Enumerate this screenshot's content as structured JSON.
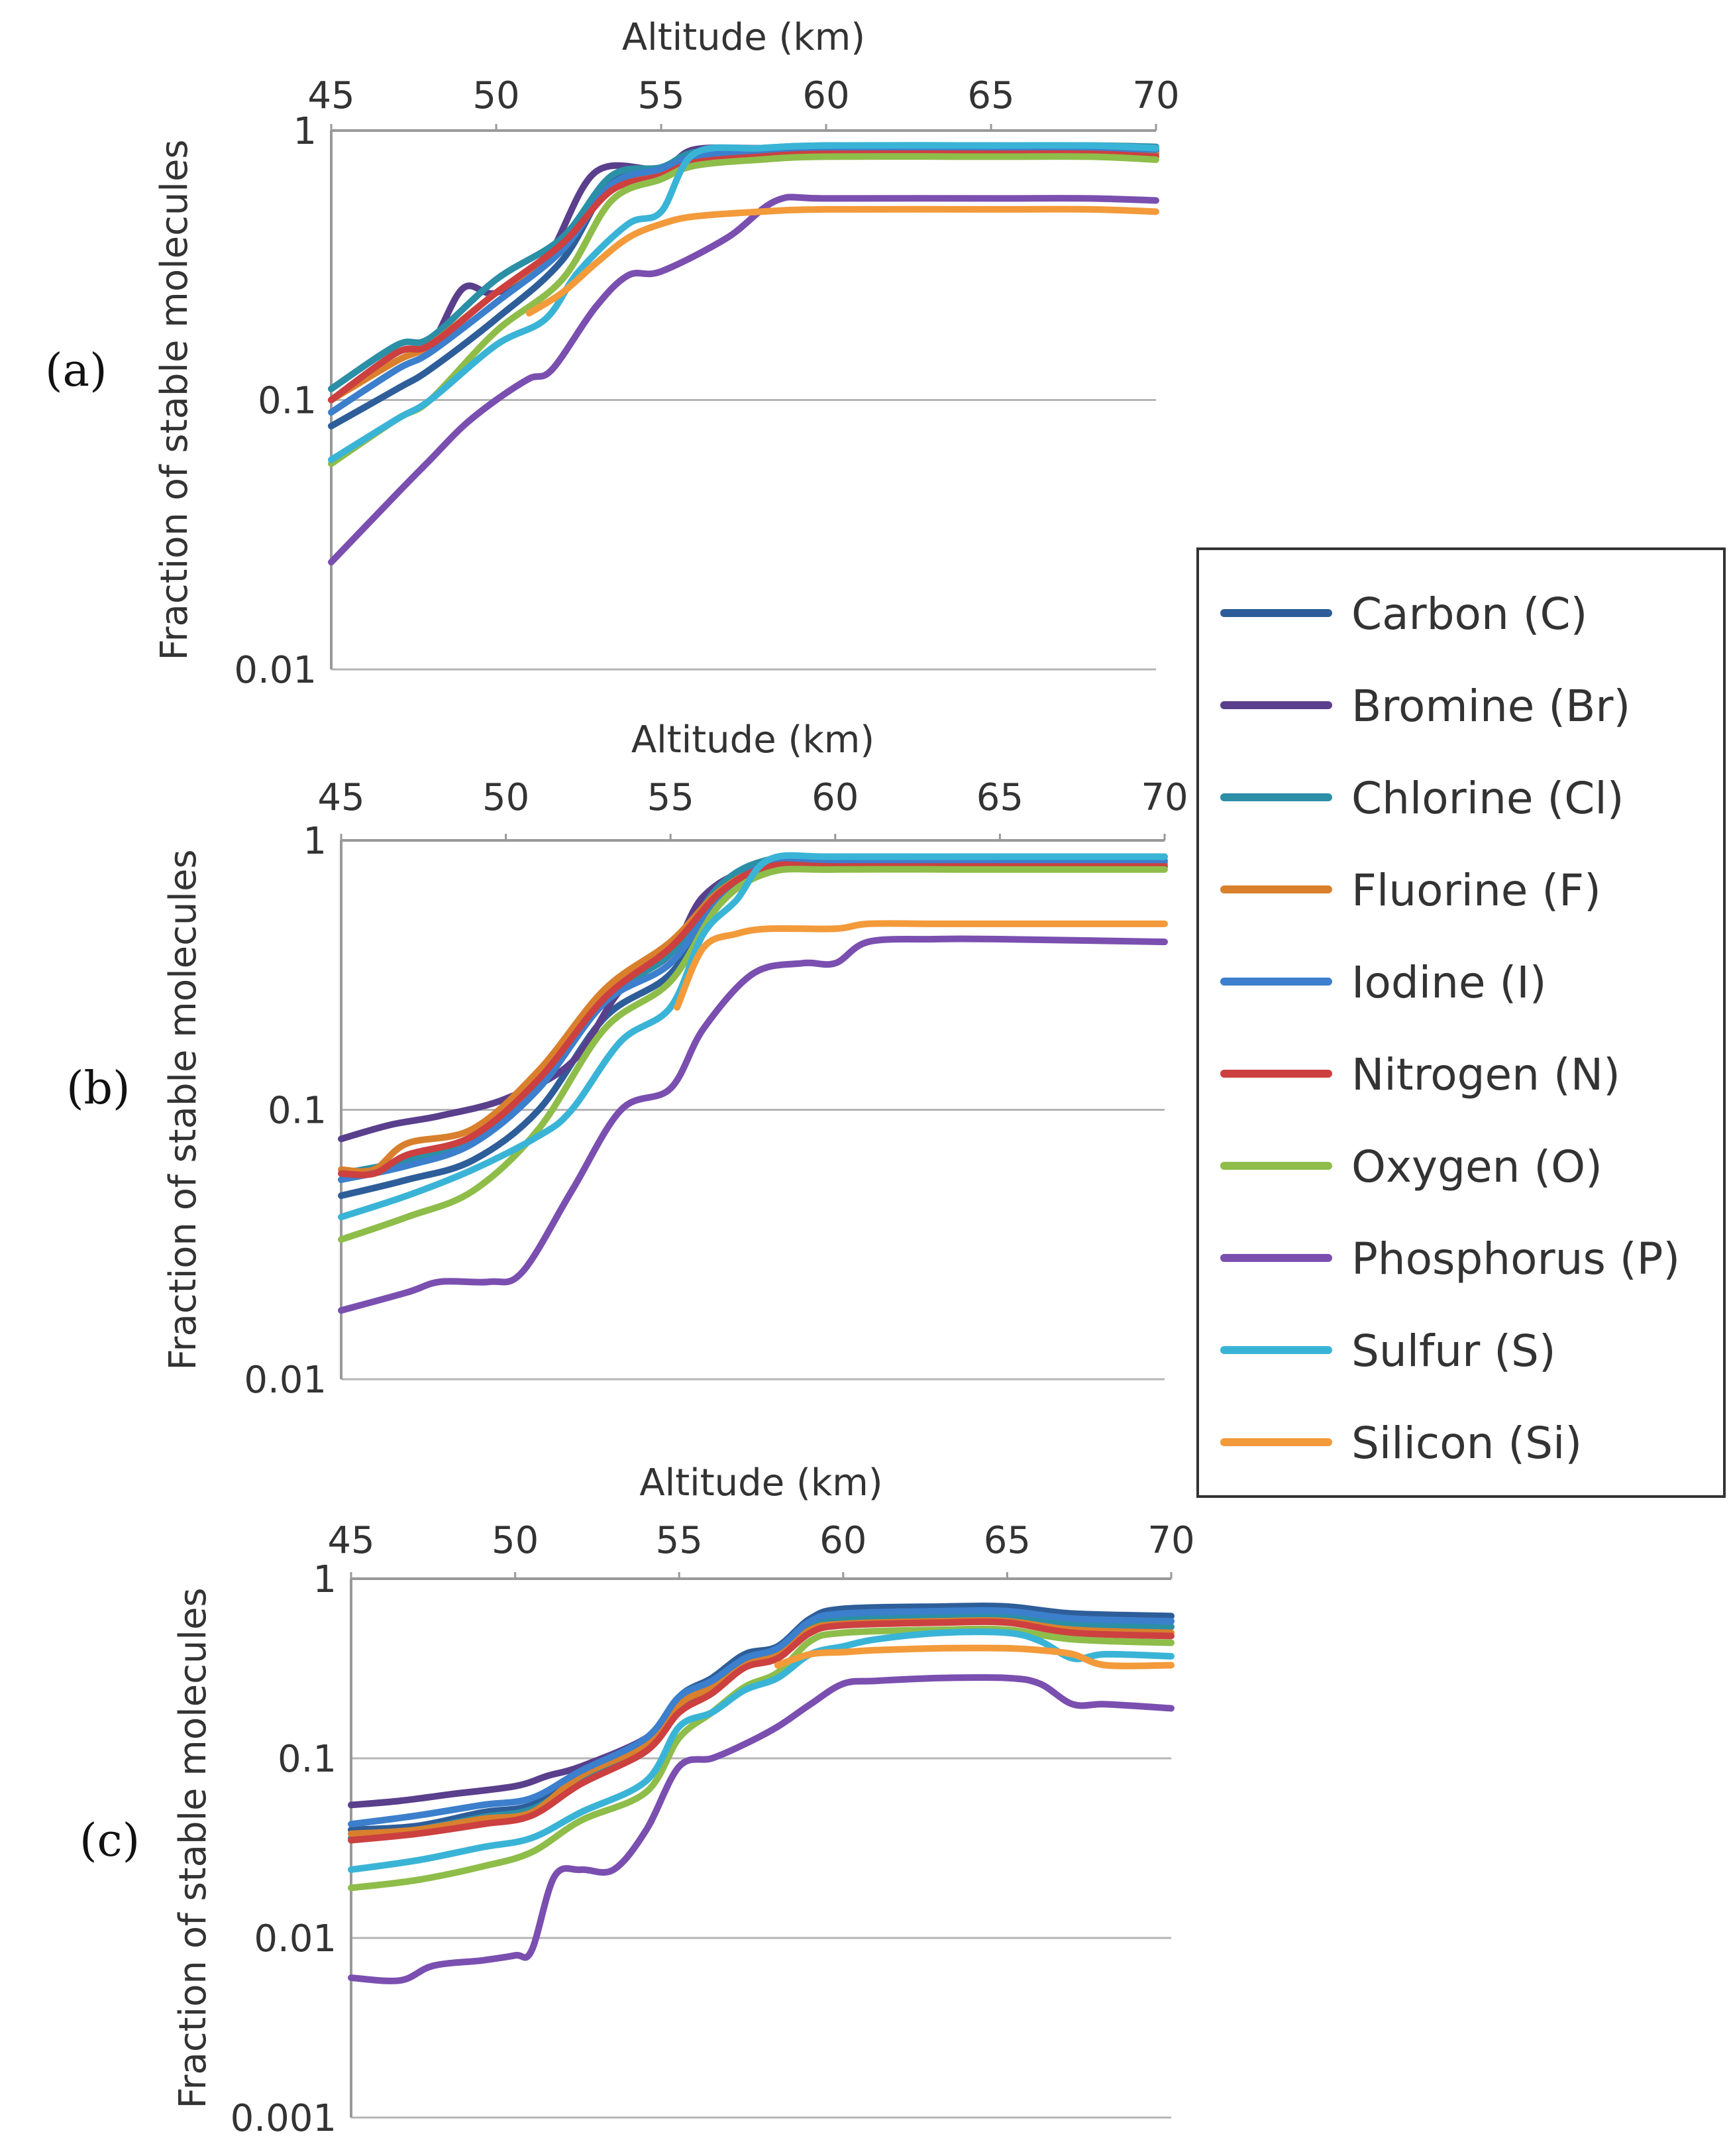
{
  "legend": {
    "items": [
      {
        "label": "Carbon (C)",
        "color": "#2e5e99"
      },
      {
        "label": "Bromine (Br)",
        "color": "#5a3f8c"
      },
      {
        "label": "Chlorine (Cl)",
        "color": "#2b8fa6"
      },
      {
        "label": "Fluorine (F)",
        "color": "#d9802d"
      },
      {
        "label": "Iodine (I)",
        "color": "#3c7fcc"
      },
      {
        "label": "Nitrogen (N)",
        "color": "#cc4040"
      },
      {
        "label": "Oxygen (O)",
        "color": "#8ebd4a"
      },
      {
        "label": "Phosphorus (P)",
        "color": "#7a4fb0"
      },
      {
        "label": "Sulfur (S)",
        "color": "#3ab4d6"
      },
      {
        "label": "Silicon (Si)",
        "color": "#f39a3a"
      }
    ]
  },
  "chart_data": [
    {
      "type": "line",
      "panel": "(a)",
      "xlabel": "Altitude (km)",
      "ylabel": "Fraction of stable molecules",
      "xlim": [
        45,
        70
      ],
      "ylim": [
        0.01,
        1
      ],
      "yscale": "log",
      "x_ticks": [
        "45",
        "50",
        "55",
        "60",
        "65",
        "70"
      ],
      "y_ticks": [
        "1",
        "0.1",
        "0.01"
      ],
      "series": [
        {
          "name": "Carbon (C)",
          "x": [
            45,
            47,
            48,
            50,
            52,
            53.5,
            55,
            56,
            58,
            60,
            65,
            68,
            70
          ],
          "values": [
            0.08,
            0.11,
            0.13,
            0.2,
            0.33,
            0.65,
            0.72,
            0.8,
            0.82,
            0.84,
            0.84,
            0.84,
            0.82
          ]
        },
        {
          "name": "Bromine (Br)",
          "x": [
            45,
            47,
            48,
            49,
            50,
            51.5,
            53,
            55,
            56,
            58,
            60,
            65,
            68,
            70
          ],
          "values": [
            0.1,
            0.15,
            0.16,
            0.26,
            0.25,
            0.33,
            0.7,
            0.72,
            0.85,
            0.86,
            0.86,
            0.86,
            0.86,
            0.84
          ]
        },
        {
          "name": "Chlorine (Cl)",
          "x": [
            45,
            47,
            48,
            50,
            52,
            53.5,
            55,
            56,
            58,
            60,
            65,
            68,
            70
          ],
          "values": [
            0.11,
            0.16,
            0.17,
            0.28,
            0.4,
            0.68,
            0.73,
            0.83,
            0.86,
            0.88,
            0.88,
            0.88,
            0.87
          ]
        },
        {
          "name": "Fluorine (F)",
          "x": [
            45,
            47,
            48,
            50,
            52,
            53.5,
            55,
            56,
            58,
            60,
            65,
            68,
            70
          ],
          "values": [
            0.1,
            0.14,
            0.16,
            0.25,
            0.37,
            0.62,
            0.7,
            0.78,
            0.82,
            0.84,
            0.84,
            0.84,
            0.83
          ]
        },
        {
          "name": "Iodine (I)",
          "x": [
            45,
            47,
            48,
            50,
            52,
            53.5,
            55,
            56,
            58,
            60,
            65,
            68,
            70
          ],
          "values": [
            0.09,
            0.13,
            0.15,
            0.23,
            0.36,
            0.63,
            0.72,
            0.8,
            0.84,
            0.86,
            0.86,
            0.86,
            0.85
          ]
        },
        {
          "name": "Nitrogen (N)",
          "x": [
            45,
            47,
            48,
            50,
            52,
            53.5,
            55,
            56,
            58,
            60,
            65,
            68,
            70
          ],
          "values": [
            0.1,
            0.15,
            0.16,
            0.25,
            0.38,
            0.6,
            0.68,
            0.76,
            0.8,
            0.82,
            0.82,
            0.82,
            0.8
          ]
        },
        {
          "name": "Oxygen (O)",
          "x": [
            45,
            47,
            48,
            50,
            52,
            53.5,
            55,
            56,
            58,
            60,
            65,
            68,
            70
          ],
          "values": [
            0.058,
            0.085,
            0.1,
            0.18,
            0.28,
            0.55,
            0.66,
            0.74,
            0.78,
            0.8,
            0.8,
            0.8,
            0.78
          ]
        },
        {
          "name": "Phosphorus (P)",
          "x": [
            45,
            47,
            48,
            49,
            50,
            51,
            51.7,
            53,
            54,
            55,
            57,
            58.5,
            60,
            65,
            68,
            70
          ],
          "values": [
            0.025,
            0.045,
            0.06,
            0.08,
            0.1,
            0.12,
            0.13,
            0.22,
            0.29,
            0.3,
            0.4,
            0.55,
            0.56,
            0.56,
            0.56,
            0.55
          ]
        },
        {
          "name": "Sulfur (S)",
          "x": [
            45,
            47,
            48,
            50,
            51.5,
            52.5,
            54,
            55,
            56,
            58,
            60,
            65,
            68,
            70
          ],
          "values": [
            0.06,
            0.085,
            0.1,
            0.16,
            0.2,
            0.3,
            0.45,
            0.5,
            0.82,
            0.86,
            0.88,
            0.88,
            0.88,
            0.86
          ]
        },
        {
          "name": "Silicon (Si)",
          "x": [
            51,
            52,
            53,
            54,
            55,
            56,
            58,
            60,
            65,
            68,
            70
          ],
          "values": [
            0.21,
            0.25,
            0.32,
            0.4,
            0.45,
            0.48,
            0.5,
            0.51,
            0.51,
            0.51,
            0.5
          ]
        }
      ]
    },
    {
      "type": "line",
      "panel": "(b)",
      "xlabel": "Altitude (km)",
      "ylabel": "Fraction of stable molecules",
      "xlim": [
        45,
        70
      ],
      "ylim": [
        0.01,
        1
      ],
      "yscale": "log",
      "x_ticks": [
        "45",
        "50",
        "55",
        "60",
        "65",
        "70"
      ],
      "y_ticks": [
        "1",
        "0.1",
        "0.01"
      ],
      "series": [
        {
          "name": "Carbon (C)",
          "x": [
            45,
            47,
            49,
            51,
            53,
            55,
            56.5,
            58,
            60,
            65,
            70
          ],
          "values": [
            0.048,
            0.055,
            0.065,
            0.1,
            0.22,
            0.32,
            0.6,
            0.8,
            0.82,
            0.82,
            0.82
          ]
        },
        {
          "name": "Bromine (Br)",
          "x": [
            45,
            46.5,
            48,
            50,
            52,
            53.5,
            55,
            56,
            57.5,
            60,
            65,
            70
          ],
          "values": [
            0.078,
            0.088,
            0.095,
            0.11,
            0.15,
            0.28,
            0.38,
            0.62,
            0.78,
            0.82,
            0.82,
            0.82
          ]
        },
        {
          "name": "Chlorine (Cl)",
          "x": [
            45,
            47,
            49,
            51,
            53,
            55,
            56.5,
            58,
            60,
            65,
            70
          ],
          "values": [
            0.058,
            0.065,
            0.08,
            0.13,
            0.26,
            0.38,
            0.68,
            0.85,
            0.87,
            0.87,
            0.87
          ]
        },
        {
          "name": "Fluorine (F)",
          "x": [
            45,
            46,
            47,
            49,
            51,
            53,
            55,
            56.5,
            58,
            60,
            65,
            70
          ],
          "values": [
            0.06,
            0.06,
            0.075,
            0.085,
            0.14,
            0.28,
            0.42,
            0.65,
            0.8,
            0.82,
            0.82,
            0.82
          ]
        },
        {
          "name": "Iodine (I)",
          "x": [
            45,
            47,
            49,
            51,
            53,
            55,
            56.5,
            58,
            60,
            65,
            70
          ],
          "values": [
            0.055,
            0.062,
            0.075,
            0.12,
            0.25,
            0.35,
            0.62,
            0.82,
            0.84,
            0.84,
            0.84
          ]
        },
        {
          "name": "Nitrogen (N)",
          "x": [
            45,
            46,
            47,
            49,
            51,
            53,
            55,
            56.5,
            58,
            60,
            65,
            70
          ],
          "values": [
            0.058,
            0.058,
            0.068,
            0.08,
            0.13,
            0.26,
            0.4,
            0.64,
            0.8,
            0.8,
            0.8,
            0.8
          ]
        },
        {
          "name": "Oxygen (O)",
          "x": [
            45,
            47,
            49,
            51,
            53,
            55,
            56.5,
            58,
            60,
            65,
            70
          ],
          "values": [
            0.033,
            0.04,
            0.05,
            0.085,
            0.2,
            0.3,
            0.58,
            0.76,
            0.78,
            0.78,
            0.78
          ]
        },
        {
          "name": "Phosphorus (P)",
          "x": [
            45,
            47,
            48,
            49.5,
            50.5,
            52,
            53.5,
            55,
            56,
            57.5,
            59,
            60,
            61,
            63,
            65,
            70
          ],
          "values": [
            0.018,
            0.021,
            0.023,
            0.023,
            0.025,
            0.05,
            0.1,
            0.12,
            0.2,
            0.32,
            0.35,
            0.35,
            0.42,
            0.43,
            0.43,
            0.42
          ]
        },
        {
          "name": "Sulfur (S)",
          "x": [
            45,
            47,
            49,
            51,
            52,
            53.5,
            55,
            56,
            57,
            58,
            60,
            65,
            70
          ],
          "values": [
            0.04,
            0.048,
            0.06,
            0.08,
            0.1,
            0.18,
            0.24,
            0.45,
            0.6,
            0.85,
            0.87,
            0.87,
            0.87
          ]
        },
        {
          "name": "Silicon (Si)",
          "x": [
            55.2,
            56,
            57,
            58,
            60,
            61,
            63,
            65,
            70
          ],
          "values": [
            0.24,
            0.4,
            0.45,
            0.47,
            0.47,
            0.49,
            0.49,
            0.49,
            0.49
          ]
        }
      ]
    },
    {
      "type": "line",
      "panel": "(c)",
      "xlabel": "Altitude (km)",
      "ylabel": "Fraction of stable molecules",
      "xlim": [
        45,
        70
      ],
      "ylim": [
        0.001,
        1
      ],
      "yscale": "log",
      "x_ticks": [
        "45",
        "50",
        "55",
        "60",
        "65",
        "70"
      ],
      "y_ticks": [
        "1",
        "0.1",
        "0.01",
        "0.001"
      ],
      "series": [
        {
          "name": "Carbon (C)",
          "x": [
            45,
            47,
            49,
            50.5,
            52,
            54,
            55,
            56,
            57,
            58,
            59,
            60,
            63,
            65,
            67,
            70
          ],
          "values": [
            0.04,
            0.042,
            0.05,
            0.055,
            0.08,
            0.12,
            0.22,
            0.28,
            0.38,
            0.42,
            0.6,
            0.68,
            0.7,
            0.7,
            0.64,
            0.62
          ]
        },
        {
          "name": "Bromine (Br)",
          "x": [
            45,
            46.5,
            48,
            50,
            51,
            52,
            54,
            55,
            56,
            57,
            58,
            59,
            60,
            63,
            65,
            67,
            70
          ],
          "values": [
            0.055,
            0.058,
            0.063,
            0.07,
            0.08,
            0.09,
            0.13,
            0.2,
            0.25,
            0.35,
            0.4,
            0.55,
            0.62,
            0.65,
            0.65,
            0.6,
            0.58
          ]
        },
        {
          "name": "Chlorine (Cl)",
          "x": [
            45,
            47,
            49,
            50.5,
            52,
            54,
            55,
            56,
            57,
            58,
            59,
            60,
            63,
            65,
            67,
            70
          ],
          "values": [
            0.036,
            0.04,
            0.047,
            0.052,
            0.075,
            0.11,
            0.2,
            0.26,
            0.35,
            0.4,
            0.55,
            0.6,
            0.62,
            0.62,
            0.56,
            0.54
          ]
        },
        {
          "name": "Fluorine (F)",
          "x": [
            45,
            47,
            49,
            50.5,
            52,
            54,
            55,
            56,
            57,
            58,
            59,
            60,
            63,
            65,
            67,
            70
          ],
          "values": [
            0.038,
            0.04,
            0.046,
            0.05,
            0.08,
            0.12,
            0.2,
            0.25,
            0.34,
            0.38,
            0.52,
            0.56,
            0.58,
            0.58,
            0.52,
            0.5
          ]
        },
        {
          "name": "Iodine (I)",
          "x": [
            45,
            47,
            49,
            50.5,
            52,
            54,
            55,
            56,
            57,
            58,
            59,
            60,
            63,
            65,
            67,
            70
          ],
          "values": [
            0.043,
            0.048,
            0.055,
            0.06,
            0.085,
            0.13,
            0.22,
            0.27,
            0.36,
            0.41,
            0.58,
            0.64,
            0.66,
            0.66,
            0.6,
            0.58
          ]
        },
        {
          "name": "Nitrogen (N)",
          "x": [
            45,
            47,
            49,
            50.5,
            52,
            54,
            55,
            56,
            57,
            58,
            59,
            60,
            63,
            65,
            67,
            70
          ],
          "values": [
            0.035,
            0.038,
            0.043,
            0.048,
            0.072,
            0.11,
            0.18,
            0.23,
            0.32,
            0.36,
            0.5,
            0.55,
            0.57,
            0.57,
            0.5,
            0.48
          ]
        },
        {
          "name": "Oxygen (O)",
          "x": [
            45,
            47,
            49,
            50.5,
            52,
            54,
            55,
            56,
            57,
            58,
            59,
            60,
            63,
            65,
            67,
            70
          ],
          "values": [
            0.019,
            0.021,
            0.025,
            0.03,
            0.045,
            0.065,
            0.13,
            0.18,
            0.25,
            0.3,
            0.45,
            0.5,
            0.52,
            0.52,
            0.46,
            0.44
          ]
        },
        {
          "name": "Phosphorus (P)",
          "x": [
            45,
            46.5,
            47.5,
            49,
            50,
            50.5,
            51.2,
            52,
            53,
            54,
            55,
            56,
            57,
            58,
            59,
            60,
            61,
            63,
            65,
            66,
            67,
            68,
            70
          ],
          "values": [
            0.006,
            0.0058,
            0.007,
            0.0075,
            0.008,
            0.0085,
            0.022,
            0.024,
            0.024,
            0.04,
            0.09,
            0.1,
            0.12,
            0.15,
            0.2,
            0.26,
            0.27,
            0.28,
            0.28,
            0.26,
            0.2,
            0.2,
            0.19
          ]
        },
        {
          "name": "Sulfur (S)",
          "x": [
            45,
            47,
            49,
            50.5,
            52,
            54,
            55,
            56,
            57,
            58,
            59,
            60,
            61,
            63,
            65,
            66,
            67,
            68,
            70
          ],
          "values": [
            0.024,
            0.027,
            0.032,
            0.036,
            0.05,
            0.075,
            0.15,
            0.18,
            0.24,
            0.28,
            0.38,
            0.42,
            0.46,
            0.5,
            0.5,
            0.45,
            0.36,
            0.38,
            0.37
          ]
        },
        {
          "name": "Silicon (Si)",
          "x": [
            58,
            59,
            60,
            61,
            63,
            65,
            66,
            67,
            68,
            70
          ],
          "values": [
            0.33,
            0.38,
            0.39,
            0.4,
            0.41,
            0.41,
            0.4,
            0.38,
            0.33,
            0.33
          ]
        }
      ]
    }
  ]
}
